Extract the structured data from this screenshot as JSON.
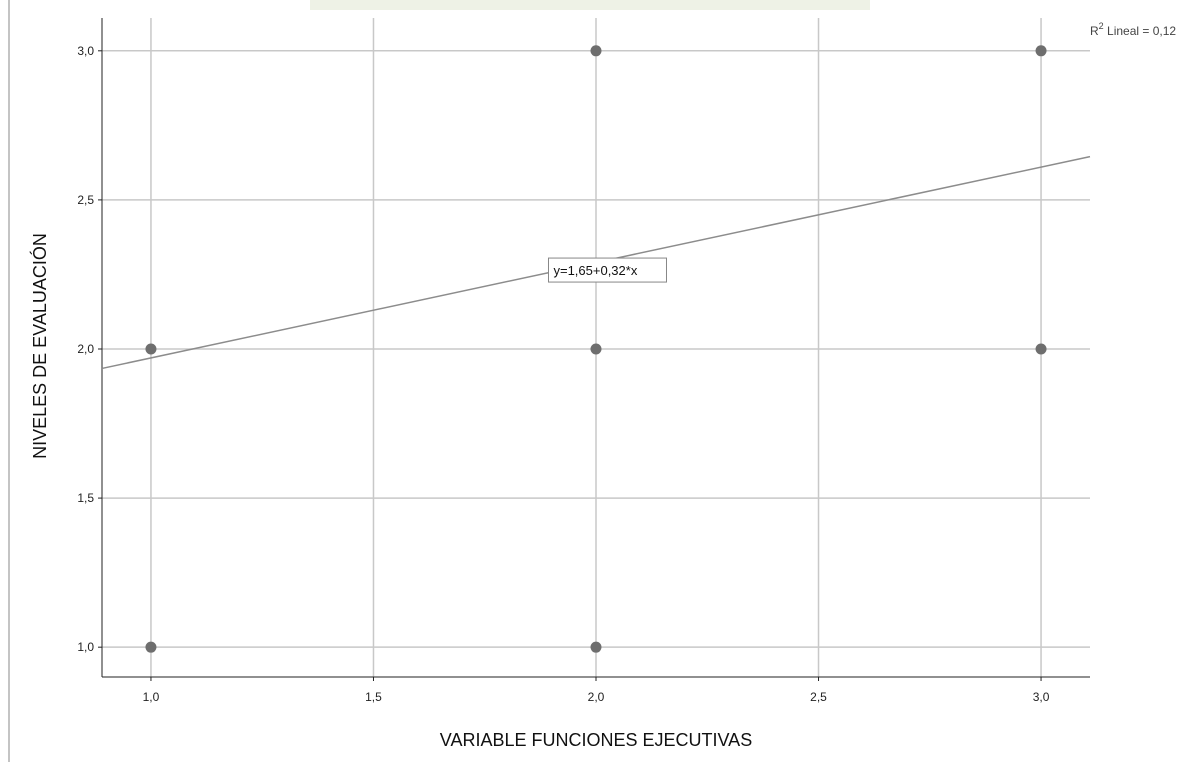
{
  "chart_data": {
    "type": "scatter",
    "title": "",
    "xlabel": "VARIABLE FUNCIONES EJECUTIVAS",
    "ylabel": "NIVELES DE EVALUACIÓN",
    "xlim": [
      0.89,
      3.11
    ],
    "ylim": [
      0.9,
      3.11
    ],
    "xticks": [
      1.0,
      1.5,
      2.0,
      2.5,
      3.0
    ],
    "xtick_labels": [
      "1,0",
      "1,5",
      "2,0",
      "2,5",
      "3,0"
    ],
    "yticks": [
      1.0,
      1.5,
      2.0,
      2.5,
      3.0
    ],
    "ytick_labels": [
      "1,0",
      "1,5",
      "2,0",
      "2,5",
      "3,0"
    ],
    "grid": true,
    "points": [
      {
        "x": 1.0,
        "y": 2.0
      },
      {
        "x": 1.0,
        "y": 1.0
      },
      {
        "x": 2.0,
        "y": 3.0
      },
      {
        "x": 2.0,
        "y": 2.0
      },
      {
        "x": 2.0,
        "y": 1.0
      },
      {
        "x": 3.0,
        "y": 3.0
      },
      {
        "x": 3.0,
        "y": 2.0
      }
    ],
    "fit_line": {
      "intercept": 1.65,
      "slope": 0.32
    },
    "fit_label": "y=1,65+0,32*x",
    "r2_label": {
      "prefix": "R",
      "sup": "2",
      "suffix": " Lineal = 0,12"
    },
    "colors": {
      "points": "#6e6e6e",
      "fit_line": "#8c8c8c",
      "grid": "#c8c8c8"
    }
  }
}
